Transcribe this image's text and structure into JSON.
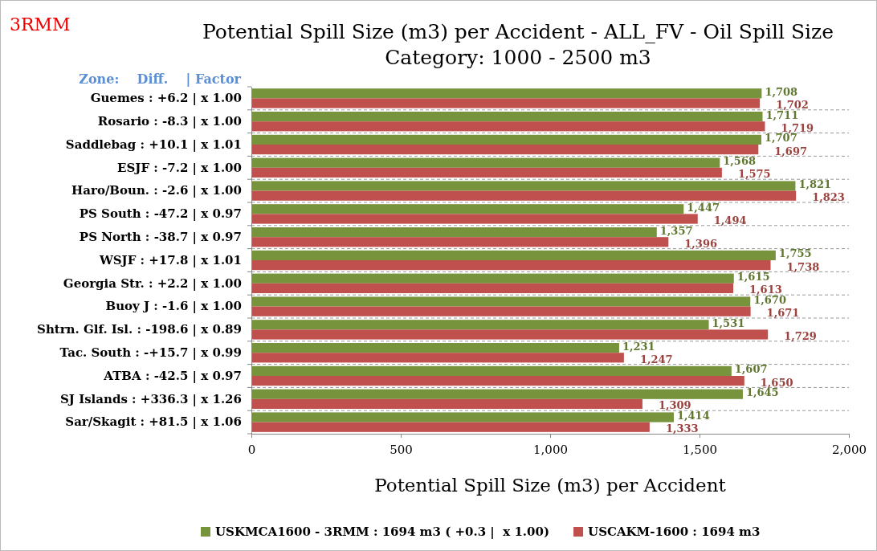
{
  "chart_data": {
    "type": "bar",
    "orientation": "horizontal",
    "title": "Potential Spill Size (m3) per Accident - ALL_FV - Oil Spill Size Category: 1000 - 2500 m3",
    "xlabel": "Potential Spill Size (m3) per Accident",
    "annotations": [
      "3RMM",
      "Zone:    Diff.    | Factor"
    ],
    "categories": [
      "Guemes : +6.2 | x 1.00",
      "Rosario : -8.3 | x 1.00",
      "Saddlebag : +10.1 | x 1.01",
      "ESJF : -7.2 | x 1.00",
      "Haro/Boun. : -2.6 | x 1.00",
      "PS South : -47.2 | x 0.97",
      "PS North : -38.7 | x 0.97",
      "WSJF : +17.8 | x 1.01",
      "Georgia Str. : +2.2 | x 1.00",
      "Buoy J : -1.6 | x 1.00",
      "Shtrn. Glf. Isl. : -198.6 | x 0.89",
      "Tac. South : -+15.7 | x 0.99",
      "ATBA : -42.5 | x 0.97",
      "SJ Islands : +336.3 | x 1.26",
      "Sar/Skagit : +81.5 | x 1.06"
    ],
    "series": [
      {
        "name": "USKMCA1600 - 3RMM : 1694 m3 ( +0.3 |  x 1.00)",
        "color": "#77933c",
        "values": [
          1708,
          1711,
          1707,
          1568,
          1821,
          1447,
          1357,
          1755,
          1615,
          1670,
          1531,
          1231,
          1607,
          1645,
          1414
        ],
        "value_labels": [
          "1,708",
          "1,711",
          "1,707",
          "1,568",
          "1,821",
          "1,447",
          "1,357",
          "1,755",
          "1,615",
          "1,670",
          "1,531",
          "1,231",
          "1,607",
          "1,645",
          "1,414"
        ]
      },
      {
        "name": "USCAKM-1600 : 1694 m3",
        "color": "#c0504d",
        "values": [
          1702,
          1719,
          1697,
          1575,
          1823,
          1494,
          1396,
          1738,
          1613,
          1671,
          1729,
          1247,
          1650,
          1309,
          1333
        ],
        "value_labels": [
          "1,702",
          "1,719",
          "1,697",
          "1,575",
          "1,823",
          "1,494",
          "1,396",
          "1,738",
          "1,613",
          "1,671",
          "1,729",
          "1,247",
          "1,650",
          "1,309",
          "1,333"
        ]
      }
    ],
    "xlim": [
      0,
      2000
    ],
    "xticks": [
      0,
      500,
      {
        "value": 1000,
        "label": "1,000"
      },
      {
        "value": 1500,
        "label": "1,500"
      },
      {
        "value": 2000,
        "label": "2,000"
      }
    ],
    "grid": "y",
    "legend": "bottom"
  }
}
